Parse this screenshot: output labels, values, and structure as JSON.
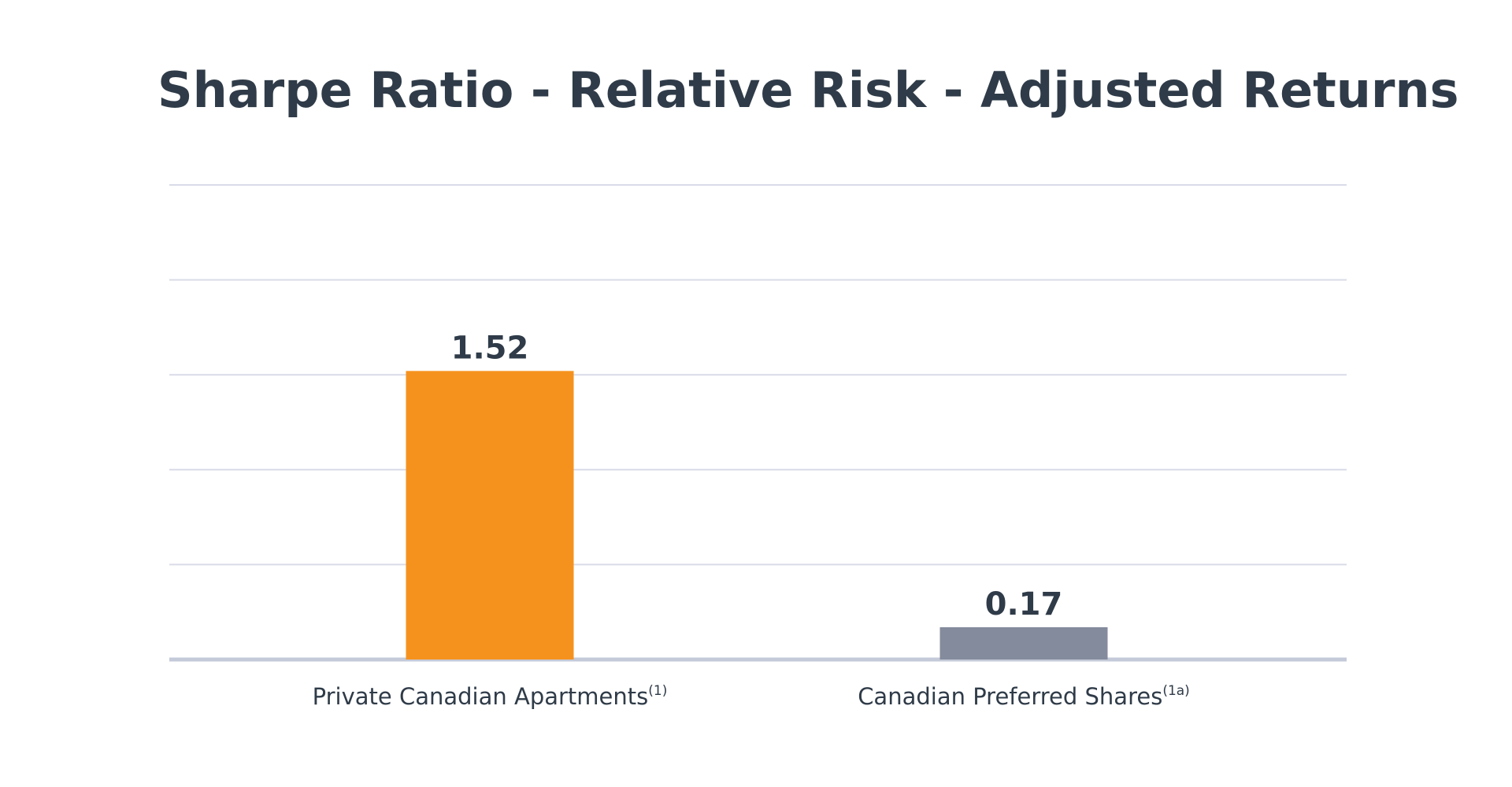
{
  "chart_data": {
    "type": "bar",
    "title": "Sharpe Ratio - Relative Risk - Adjusted Returns",
    "categories": [
      "Private Canadian Apartments",
      "Canadian Preferred Shares"
    ],
    "category_superscripts": [
      "(1)",
      "(1a)"
    ],
    "values": [
      1.52,
      0.17
    ],
    "data_labels": [
      "1.52",
      "0.17"
    ],
    "colors": [
      "#f5921e",
      "#848b9c"
    ],
    "xlabel": "",
    "ylabel": "",
    "ylim": [
      0,
      2.5
    ],
    "gridlines": [
      0,
      0.5,
      1.0,
      1.5,
      2.0,
      2.5
    ],
    "grid": true,
    "legend": "none"
  }
}
